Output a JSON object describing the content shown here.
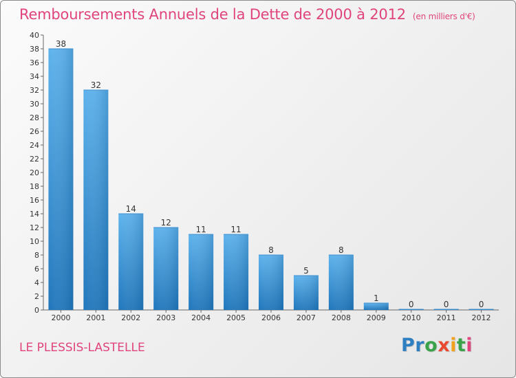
{
  "title": "Remboursements Annuels de la Dette de 2000 à 2012",
  "title_unit": "(en milliers d'€)",
  "commune": "LE PLESSIS-LASTELLE",
  "logo": {
    "letters": [
      "P",
      "r",
      "o",
      "x",
      "i",
      "t",
      "i"
    ],
    "colors": [
      "#2e7fc1",
      "#2e7fc1",
      "#3aa34a",
      "#e8492f",
      "#f2a21f",
      "#3aa34a",
      "#e0447d"
    ]
  },
  "colors": {
    "title": "#e0447d",
    "bar_light": "#5db2ec",
    "bar_dark": "#1f76bb",
    "axis": "#666666"
  },
  "chart_data": {
    "type": "bar",
    "title": "Remboursements Annuels de la Dette de 2000 à 2012",
    "xlabel": "",
    "ylabel": "",
    "categories": [
      "2000",
      "2001",
      "2002",
      "2003",
      "2004",
      "2005",
      "2006",
      "2007",
      "2008",
      "2009",
      "2010",
      "2011",
      "2012"
    ],
    "values": [
      38,
      32,
      14,
      12,
      11,
      11,
      8,
      5,
      8,
      1,
      0,
      0,
      0
    ],
    "ylim": [
      0,
      40
    ],
    "yticks": [
      0,
      2,
      4,
      6,
      8,
      10,
      12,
      14,
      16,
      18,
      20,
      22,
      24,
      26,
      28,
      30,
      32,
      34,
      36,
      38,
      40
    ],
    "grid": false
  }
}
